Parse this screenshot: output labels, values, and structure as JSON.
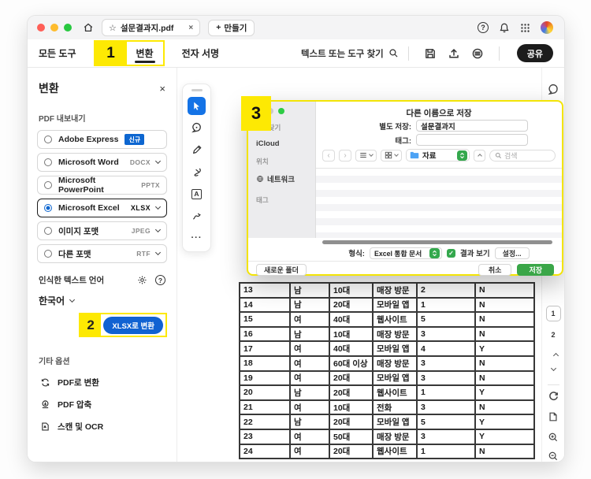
{
  "colors": {
    "accent_blue": "#1062d2",
    "radio_blue": "#0d66d0",
    "highlight_yellow": "#fde903",
    "macos_green": "#34a84d",
    "share_black": "#1c1c1c"
  },
  "icons": {
    "star": "☆",
    "close": "×",
    "plus": "+",
    "ellipsis": "···",
    "question": "?",
    "text_tool": "A",
    "back": "‹",
    "forward": "›",
    "check": "✓"
  },
  "window": {
    "tab": {
      "title": "설문결과지.pdf"
    },
    "new_tab_label": "만들기",
    "toolbar": {
      "menu_all_tools": "모든 도구",
      "menu_convert": "변환",
      "menu_esign": "전자 서명",
      "search_label": "텍스트 또는 도구 찾기",
      "share_label": "공유"
    },
    "callouts": {
      "one": "1",
      "two": "2",
      "three": "3"
    }
  },
  "sidebar": {
    "title": "변환",
    "section_export": "PDF 내보내기",
    "export_options": [
      {
        "label": "Adobe Express",
        "badge": "신규",
        "format": ""
      },
      {
        "label": "Microsoft Word",
        "format": "DOCX"
      },
      {
        "label": "Microsoft PowerPoint",
        "format": "PPTX"
      },
      {
        "label": "Microsoft Excel",
        "format": "XLSX"
      },
      {
        "label": "이미지 포맷",
        "format": "JPEG"
      },
      {
        "label": "다른 포맷",
        "format": "RTF"
      }
    ],
    "language_section": "인식한 텍스트 언어",
    "language_value": "한국어",
    "convert_button": "XLSX로 변환",
    "section_other": "기타 옵션",
    "other_options": [
      {
        "label": "PDF로 변환"
      },
      {
        "label": "PDF 압축"
      },
      {
        "label": "스캔 및 OCR"
      }
    ]
  },
  "dialog": {
    "title": "다른 이름으로 저장",
    "save_as_label": "별도 저장:",
    "filename": "설문결과지",
    "tags_label": "태그:",
    "folder_name": "자료",
    "search_placeholder": "검색",
    "sidebar": {
      "favorites": "즐겨찾기",
      "icloud": "iCloud",
      "locations": "위치",
      "network": "네트워크",
      "tags": "태그"
    },
    "format_label": "형식:",
    "format_value": "Excel 통합 문서",
    "open_after_label": "결과 보기",
    "settings_button": "설정...",
    "new_folder_button": "새로운 폴더",
    "cancel_button": "취소",
    "save_button": "저장"
  },
  "page_nav": {
    "page1": "1",
    "page2": "2"
  },
  "table": {
    "rows": [
      [
        "13",
        "남",
        "10대",
        "매장 방문",
        "2",
        "N"
      ],
      [
        "14",
        "남",
        "20대",
        "모바일 앱",
        "1",
        "N"
      ],
      [
        "15",
        "여",
        "40대",
        "웹사이트",
        "5",
        "N"
      ],
      [
        "16",
        "남",
        "10대",
        "매장 방문",
        "3",
        "N"
      ],
      [
        "17",
        "여",
        "40대",
        "모바일 앱",
        "4",
        "Y"
      ],
      [
        "18",
        "여",
        "60대 이상",
        "매장 방문",
        "3",
        "N"
      ],
      [
        "19",
        "여",
        "20대",
        "모바일 앱",
        "3",
        "N"
      ],
      [
        "20",
        "남",
        "20대",
        "웹사이트",
        "1",
        "Y"
      ],
      [
        "21",
        "여",
        "10대",
        "전화",
        "3",
        "N"
      ],
      [
        "22",
        "남",
        "20대",
        "모바일 앱",
        "5",
        "Y"
      ],
      [
        "23",
        "여",
        "50대",
        "매장 방문",
        "3",
        "Y"
      ],
      [
        "24",
        "여",
        "20대",
        "웹사이트",
        "1",
        "N"
      ]
    ]
  }
}
